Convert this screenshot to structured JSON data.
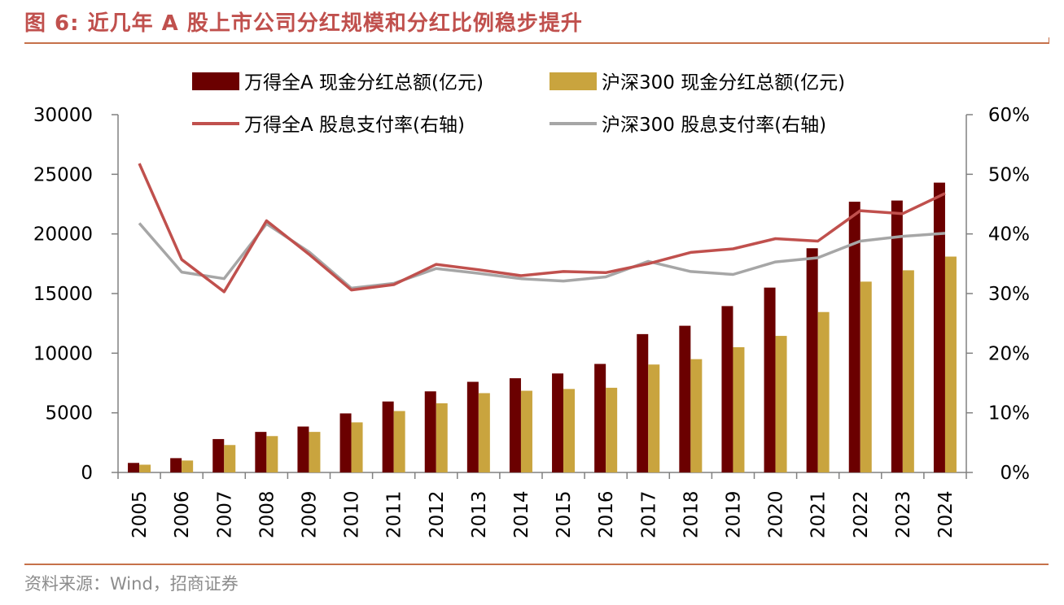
{
  "header": {
    "title": "图 6:  近几年 A 股上市公司分红规模和分红比例稳步提升"
  },
  "footer": {
    "source": "资料来源：Wind，招商证券"
  },
  "chart_data": {
    "type": "bar+line",
    "categories": [
      "2005",
      "2006",
      "2007",
      "2008",
      "2009",
      "2010",
      "2011",
      "2012",
      "2013",
      "2014",
      "2015",
      "2016",
      "2017",
      "2018",
      "2019",
      "2020",
      "2021",
      "2022",
      "2023",
      "2024"
    ],
    "y_left": {
      "range": [
        0,
        30000
      ],
      "ticks": [
        "0",
        "5000",
        "10000",
        "15000",
        "20000",
        "25000",
        "30000"
      ],
      "tick_values": [
        0,
        5000,
        10000,
        15000,
        20000,
        25000,
        30000
      ]
    },
    "y_right": {
      "range": [
        0,
        60
      ],
      "ticks": [
        "0%",
        "10%",
        "20%",
        "30%",
        "40%",
        "50%",
        "60%"
      ],
      "tick_values": [
        0,
        10,
        20,
        30,
        40,
        50,
        60
      ]
    },
    "series": [
      {
        "name": "万得全A 现金分红总额(亿元)",
        "kind": "bar",
        "axis": "left",
        "color": "#6b0000",
        "values": [
          800,
          1200,
          2800,
          3400,
          3850,
          4950,
          5950,
          6800,
          7600,
          7900,
          8300,
          9100,
          11600,
          12300,
          13950,
          15500,
          18800,
          22700,
          22800,
          24300
        ]
      },
      {
        "name": "沪深300 现金分红总额(亿元)",
        "kind": "bar",
        "axis": "left",
        "color": "#c9a43e",
        "values": [
          650,
          1000,
          2300,
          3050,
          3400,
          4200,
          5150,
          5800,
          6650,
          6850,
          7000,
          7100,
          9050,
          9500,
          10500,
          11450,
          13450,
          16000,
          16950,
          18100
        ]
      },
      {
        "name": "万得全A 股息支付率(右轴)",
        "kind": "line",
        "axis": "right",
        "color": "#c0504d",
        "values": [
          51.8,
          35.7,
          30.3,
          42.2,
          36.6,
          30.6,
          31.5,
          34.9,
          34.0,
          33.0,
          33.7,
          33.5,
          35.0,
          36.9,
          37.5,
          39.2,
          38.8,
          43.9,
          43.4,
          46.8
        ]
      },
      {
        "name": "沪深300 股息支付率(右轴)",
        "kind": "line",
        "axis": "right",
        "color": "#a6a6a6",
        "values": [
          41.8,
          33.6,
          32.5,
          41.7,
          37.0,
          30.9,
          31.7,
          34.2,
          33.4,
          32.5,
          32.1,
          32.8,
          35.4,
          33.7,
          33.2,
          35.3,
          36.0,
          38.8,
          39.6,
          40.1
        ]
      }
    ],
    "legend_placement": "top"
  }
}
